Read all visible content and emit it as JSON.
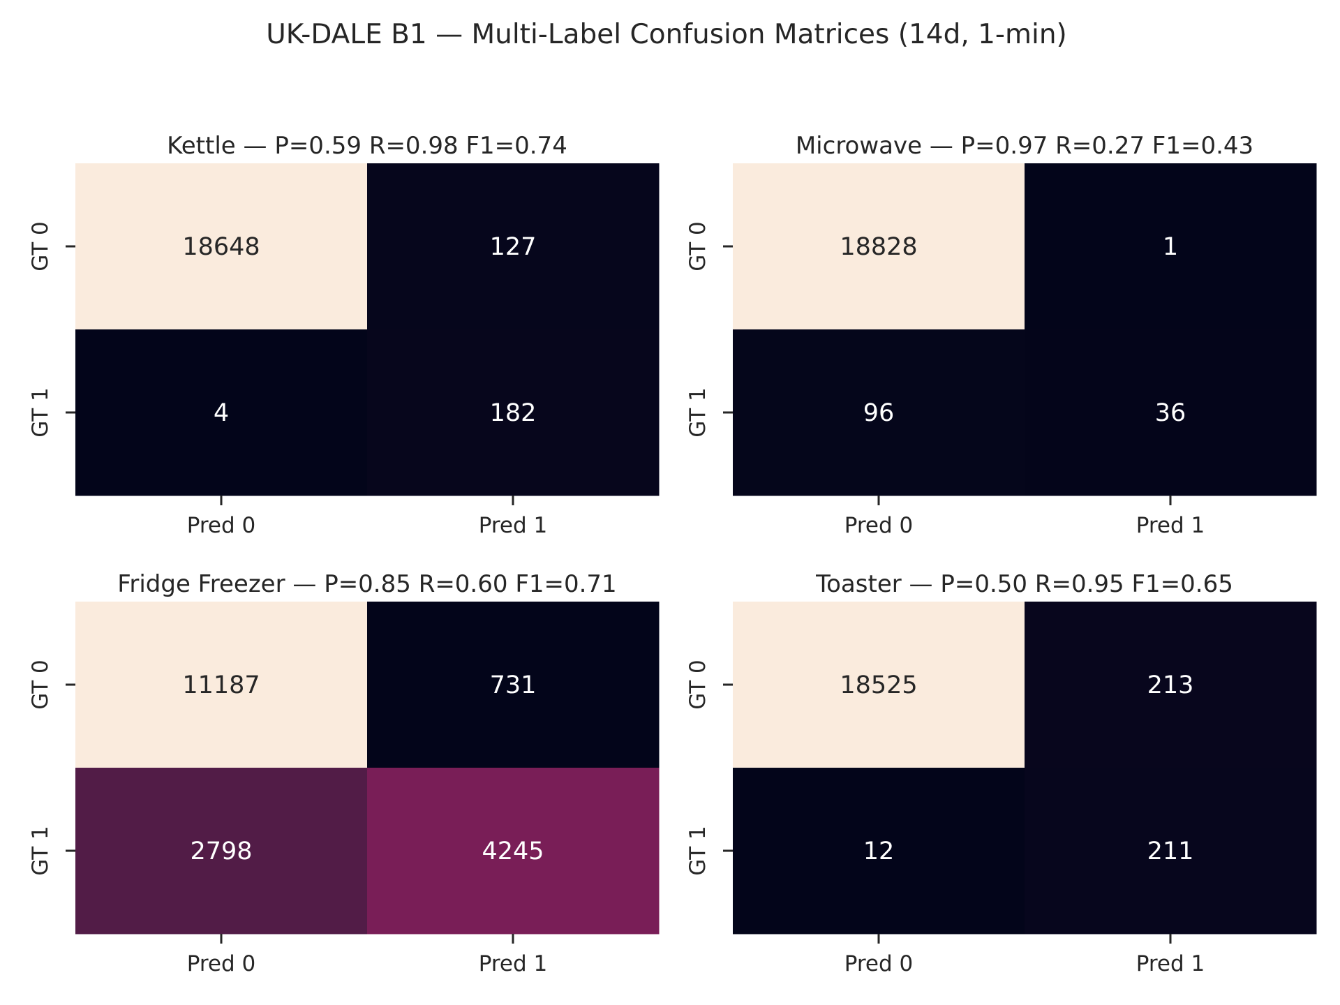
{
  "suptitle": "UK-DALE B1 — Multi-Label Confusion Matrices (14d, 1-min)",
  "colormap": {
    "low": "#03051a",
    "mid1": "#4a1c44",
    "mid2": "#861e5c",
    "high": "#faebdd"
  },
  "text_colors": {
    "on_dark": "#ffffff",
    "on_light": "#262626"
  },
  "chart_data": [
    {
      "type": "heatmap",
      "title": "Kettle — P=0.59 R=0.98 F1=0.74",
      "x_ticklabels": [
        "Pred 0",
        "Pred 1"
      ],
      "y_ticklabels": [
        "GT 0",
        "GT 1"
      ],
      "values": [
        [
          18648,
          127
        ],
        [
          4,
          182
        ]
      ]
    },
    {
      "type": "heatmap",
      "title": "Microwave — P=0.97 R=0.27 F1=0.43",
      "x_ticklabels": [
        "Pred 0",
        "Pred 1"
      ],
      "y_ticklabels": [
        "GT 0",
        "GT 1"
      ],
      "values": [
        [
          18828,
          1
        ],
        [
          96,
          36
        ]
      ]
    },
    {
      "type": "heatmap",
      "title": "Fridge Freezer — P=0.85 R=0.60 F1=0.71",
      "x_ticklabels": [
        "Pred 0",
        "Pred 1"
      ],
      "y_ticklabels": [
        "GT 0",
        "GT 1"
      ],
      "values": [
        [
          11187,
          731
        ],
        [
          2798,
          4245
        ]
      ]
    },
    {
      "type": "heatmap",
      "title": "Toaster — P=0.50 R=0.95 F1=0.65",
      "x_ticklabels": [
        "Pred 0",
        "Pred 1"
      ],
      "y_ticklabels": [
        "GT 0",
        "GT 1"
      ],
      "values": [
        [
          18525,
          213
        ],
        [
          12,
          211
        ]
      ]
    }
  ]
}
